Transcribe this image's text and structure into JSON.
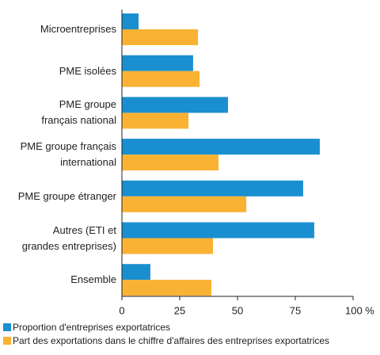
{
  "chart_data": {
    "type": "hbar",
    "categories": [
      "Microentreprises",
      "PME isolées",
      "PME groupe\nfrançais national",
      "PME groupe français\ninternational",
      "PME groupe étranger",
      "Autres (ETI et\ngrandes entreprises)",
      "Ensemble"
    ],
    "series": [
      {
        "name": "Proportion d'entreprises exportatrices",
        "color": "#1a8fd0",
        "values": [
          7.2,
          30.8,
          45.9,
          85.6,
          78.4,
          83.2,
          12.3
        ]
      },
      {
        "name": "Part des exportations dans le chiffre d'affaires des entreprises exportatrices",
        "color": "#f9b233",
        "values": [
          32.9,
          33.6,
          28.8,
          41.8,
          53.8,
          39.4,
          38.7
        ]
      }
    ],
    "xlim": [
      0,
      100
    ],
    "xticks": [
      0,
      25,
      50,
      75,
      {
        "value": 100,
        "label": "100 %"
      }
    ]
  }
}
